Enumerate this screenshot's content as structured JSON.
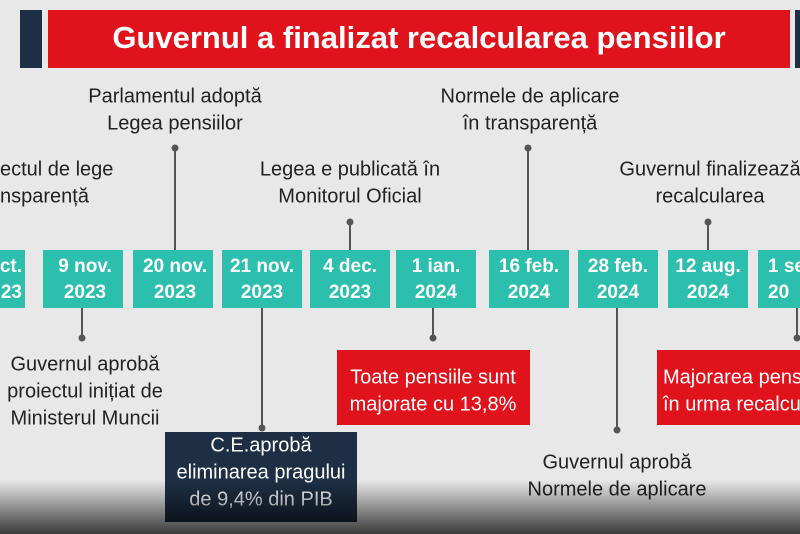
{
  "header": {
    "title": "Guvernul a finalizat recalcularea pensiilor"
  },
  "dates": [
    {
      "lines": [
        "ect.",
        "23"
      ]
    },
    {
      "lines": [
        "9 nov.",
        "2023"
      ]
    },
    {
      "lines": [
        "20 nov.",
        "2023"
      ]
    },
    {
      "lines": [
        "21 nov.",
        "2023"
      ]
    },
    {
      "lines": [
        "4 dec.",
        "2023"
      ]
    },
    {
      "lines": [
        "1 ian.",
        "2024"
      ]
    },
    {
      "lines": [
        "16 feb.",
        "2024"
      ]
    },
    {
      "lines": [
        "28 feb.",
        "2024"
      ]
    },
    {
      "lines": [
        "12 aug.",
        "2024"
      ]
    },
    {
      "lines": [
        "1 se",
        "20"
      ]
    }
  ],
  "events": [
    {
      "lines": [
        "ectul de lege",
        "nsparență"
      ]
    },
    {
      "lines": [
        "Parlamentul adoptă",
        "Legea pensiilor"
      ]
    },
    {
      "lines": [
        "Legea e publicată în",
        "Monitorul Oficial"
      ]
    },
    {
      "lines": [
        "Normele de aplicare",
        "în transparență"
      ]
    },
    {
      "lines": [
        "Guvernul finalizează",
        "recalcularea"
      ]
    },
    {
      "lines": [
        "Guvernul aprobă",
        "proiectul inițiat de",
        "Ministerul Muncii"
      ]
    },
    {
      "lines": [
        "C.E.aprobă",
        "eliminarea pragului",
        "de 9,4% din PIB"
      ]
    },
    {
      "lines": [
        "Toate pensiile sunt",
        "majorate cu 13,8%"
      ]
    },
    {
      "lines": [
        "Guvernul aprobă",
        "Normele de aplicare"
      ]
    },
    {
      "lines": [
        "Majorarea pens",
        "în urma recalcu"
      ]
    }
  ]
}
